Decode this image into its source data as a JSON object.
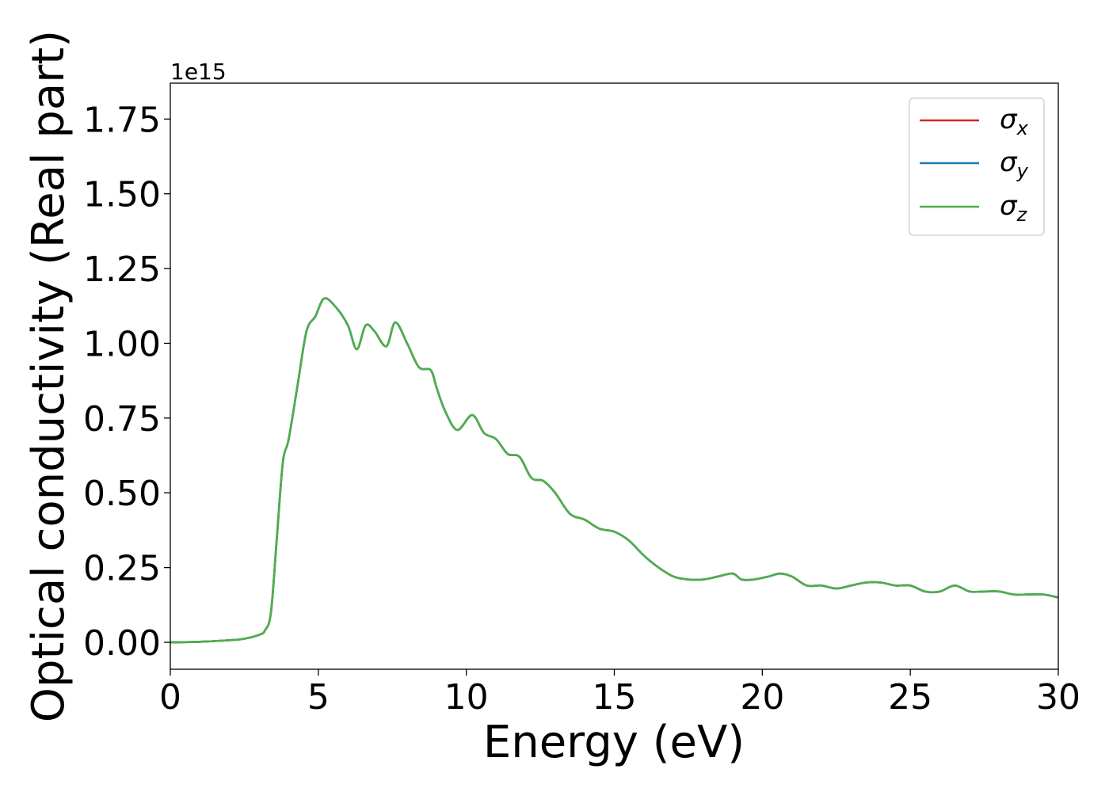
{
  "chart_data": {
    "type": "line",
    "xlabel": "Energy (eV)",
    "ylabel": "Optical conductivity (Real part)",
    "offset_text": "1e15",
    "xlim": [
      0,
      30
    ],
    "ylim": [
      -0.09,
      1.87
    ],
    "xticks": [
      0,
      5,
      10,
      15,
      20,
      25,
      30
    ],
    "xtick_labels": [
      "0",
      "5",
      "10",
      "15",
      "20",
      "25",
      "30"
    ],
    "yticks": [
      0.0,
      0.25,
      0.5,
      0.75,
      1.0,
      1.25,
      1.5,
      1.75
    ],
    "ytick_labels": [
      "0.00",
      "0.25",
      "0.50",
      "0.75",
      "1.00",
      "1.25",
      "1.50",
      "1.75"
    ],
    "grid": false,
    "legend_position": "top-right",
    "legend": [
      {
        "base": "σ",
        "sub": "x",
        "color": "#d62728"
      },
      {
        "base": "σ",
        "sub": "y",
        "color": "#1f77b4"
      },
      {
        "base": "σ",
        "sub": "z",
        "color": "#4daf4a"
      }
    ],
    "x": [
      0,
      1,
      2,
      2.5,
      3.0,
      3.2,
      3.4,
      3.6,
      3.8,
      4.0,
      4.3,
      4.6,
      4.9,
      5.2,
      5.6,
      6.0,
      6.3,
      6.6,
      6.9,
      7.3,
      7.6,
      8.0,
      8.4,
      8.8,
      9.0,
      9.3,
      9.7,
      10.2,
      10.6,
      11.0,
      11.4,
      11.8,
      12.2,
      12.6,
      13.0,
      13.5,
      14.0,
      14.5,
      15.0,
      15.5,
      16.0,
      16.5,
      17.0,
      17.5,
      18.0,
      18.5,
      19.0,
      19.3,
      19.7,
      20.2,
      20.6,
      21.0,
      21.5,
      22.0,
      22.5,
      23.0,
      23.5,
      24.0,
      24.5,
      25.0,
      25.5,
      26.0,
      26.5,
      27.0,
      27.5,
      28.0,
      28.5,
      29.0,
      29.5,
      30.0
    ],
    "series": [
      {
        "values": [
          0.0,
          0.002,
          0.007,
          0.012,
          0.025,
          0.04,
          0.1,
          0.35,
          0.6,
          0.68,
          0.86,
          1.04,
          1.09,
          1.15,
          1.12,
          1.06,
          0.98,
          1.06,
          1.04,
          0.99,
          1.07,
          1.0,
          0.92,
          0.91,
          0.85,
          0.77,
          0.71,
          0.76,
          0.7,
          0.68,
          0.63,
          0.62,
          0.55,
          0.54,
          0.5,
          0.43,
          0.41,
          0.38,
          0.37,
          0.34,
          0.29,
          0.25,
          0.22,
          0.21,
          0.21,
          0.22,
          0.23,
          0.21,
          0.21,
          0.22,
          0.23,
          0.22,
          0.19,
          0.19,
          0.18,
          0.19,
          0.2,
          0.2,
          0.19,
          0.19,
          0.17,
          0.17,
          0.19,
          0.17,
          0.17,
          0.17,
          0.16,
          0.16,
          0.16,
          0.15
        ],
        "color": "#d62728"
      },
      {
        "values": [
          0.0,
          0.002,
          0.007,
          0.012,
          0.025,
          0.04,
          0.1,
          0.35,
          0.6,
          0.68,
          0.86,
          1.04,
          1.09,
          1.15,
          1.12,
          1.06,
          0.98,
          1.06,
          1.04,
          0.99,
          1.07,
          1.0,
          0.92,
          0.91,
          0.85,
          0.77,
          0.71,
          0.76,
          0.7,
          0.68,
          0.63,
          0.62,
          0.55,
          0.54,
          0.5,
          0.43,
          0.41,
          0.38,
          0.37,
          0.34,
          0.29,
          0.25,
          0.22,
          0.21,
          0.21,
          0.22,
          0.23,
          0.21,
          0.21,
          0.22,
          0.23,
          0.22,
          0.19,
          0.19,
          0.18,
          0.19,
          0.2,
          0.2,
          0.19,
          0.19,
          0.17,
          0.17,
          0.19,
          0.17,
          0.17,
          0.17,
          0.16,
          0.16,
          0.16,
          0.15
        ],
        "color": "#1f77b4"
      },
      {
        "values": [
          0.0,
          0.002,
          0.007,
          0.012,
          0.025,
          0.04,
          0.1,
          0.35,
          0.6,
          0.68,
          0.86,
          1.04,
          1.09,
          1.15,
          1.12,
          1.06,
          0.98,
          1.06,
          1.04,
          0.99,
          1.07,
          1.0,
          0.92,
          0.91,
          0.85,
          0.77,
          0.71,
          0.76,
          0.7,
          0.68,
          0.63,
          0.62,
          0.55,
          0.54,
          0.5,
          0.43,
          0.41,
          0.38,
          0.37,
          0.34,
          0.29,
          0.25,
          0.22,
          0.21,
          0.21,
          0.22,
          0.23,
          0.21,
          0.21,
          0.22,
          0.23,
          0.22,
          0.19,
          0.19,
          0.18,
          0.19,
          0.2,
          0.2,
          0.19,
          0.19,
          0.17,
          0.17,
          0.19,
          0.17,
          0.17,
          0.17,
          0.16,
          0.16,
          0.16,
          0.15
        ],
        "color": "#4daf4a"
      }
    ]
  }
}
